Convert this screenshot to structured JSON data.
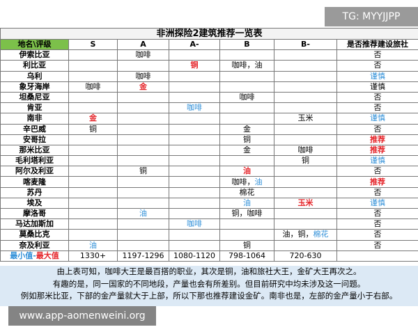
{
  "watermark_top": "TG: MYYJJPP",
  "colors": {
    "red": "#e5262b",
    "blue": "#2f8fd8"
  },
  "table": {
    "title": "非洲探险2建筑推荐一览表",
    "header": [
      "地名\\评级",
      "S",
      "A",
      "A-",
      "B",
      "B-",
      "是否推荐建设旅社"
    ],
    "rows": [
      {
        "name": "伊索比亚",
        "cells": [
          null,
          [
            {
              "text": "咖啡"
            }
          ],
          null,
          null,
          null,
          [
            {
              "text": "否"
            }
          ]
        ]
      },
      {
        "name": "利比亚",
        "cells": [
          null,
          null,
          [
            {
              "text": "铜",
              "color": "red"
            }
          ],
          [
            {
              "text": "咖啡，油"
            }
          ],
          null,
          [
            {
              "text": "否"
            }
          ]
        ]
      },
      {
        "name": "乌利",
        "cells": [
          null,
          [
            {
              "text": "咖啡"
            }
          ],
          null,
          null,
          null,
          [
            {
              "text": "谨慎",
              "color": "blue"
            }
          ]
        ]
      },
      {
        "name": "象牙海岸",
        "cells": [
          [
            {
              "text": "咖啡"
            }
          ],
          [
            {
              "text": "金",
              "color": "red"
            }
          ],
          null,
          null,
          null,
          [
            {
              "text": "谨慎"
            }
          ]
        ]
      },
      {
        "name": "坦桑尼亚",
        "cells": [
          null,
          null,
          null,
          [
            {
              "text": "咖啡"
            }
          ],
          null,
          [
            {
              "text": "否"
            }
          ]
        ]
      },
      {
        "name": "肯亚",
        "cells": [
          null,
          null,
          [
            {
              "text": "咖啡",
              "color": "blue"
            }
          ],
          null,
          null,
          [
            {
              "text": "否"
            }
          ]
        ]
      },
      {
        "name": "南非",
        "cells": [
          [
            {
              "text": "金",
              "color": "red"
            }
          ],
          null,
          null,
          null,
          [
            {
              "text": "玉米"
            }
          ],
          [
            {
              "text": "谨慎",
              "color": "blue"
            }
          ]
        ]
      },
      {
        "name": "辛巴威",
        "cells": [
          [
            {
              "text": "铜"
            }
          ],
          null,
          null,
          [
            {
              "text": "金"
            }
          ],
          null,
          [
            {
              "text": "否"
            }
          ]
        ]
      },
      {
        "name": "安哥拉",
        "cells": [
          null,
          null,
          null,
          [
            {
              "text": "铜"
            }
          ],
          null,
          [
            {
              "text": "推荐",
              "color": "red"
            }
          ]
        ]
      },
      {
        "name": "那米比亚",
        "cells": [
          null,
          null,
          null,
          [
            {
              "text": "金"
            }
          ],
          [
            {
              "text": "咖啡"
            }
          ],
          [
            {
              "text": "推荐",
              "color": "red"
            }
          ]
        ]
      },
      {
        "name": "毛利塔利亚",
        "cells": [
          null,
          null,
          null,
          null,
          [
            {
              "text": "铜"
            }
          ],
          [
            {
              "text": "谨慎",
              "color": "blue"
            }
          ]
        ]
      },
      {
        "name": "阿尔及利亚",
        "cells": [
          null,
          [
            {
              "text": "铜"
            }
          ],
          null,
          [
            {
              "text": "油",
              "color": "red"
            }
          ],
          null,
          [
            {
              "text": "否"
            }
          ]
        ]
      },
      {
        "name": "喀麦隆",
        "cells": [
          null,
          null,
          null,
          [
            {
              "text": "咖啡，"
            },
            {
              "text": "油",
              "color": "blue"
            }
          ],
          null,
          [
            {
              "text": "推荐",
              "color": "red"
            }
          ]
        ]
      },
      {
        "name": "苏丹",
        "cells": [
          null,
          null,
          null,
          [
            {
              "text": "棉花"
            }
          ],
          null,
          [
            {
              "text": "否"
            }
          ]
        ]
      },
      {
        "name": "埃及",
        "cells": [
          null,
          null,
          null,
          [
            {
              "text": "油",
              "color": "blue"
            }
          ],
          [
            {
              "text": "玉米",
              "color": "red"
            }
          ],
          [
            {
              "text": "谨慎",
              "color": "blue"
            }
          ]
        ]
      },
      {
        "name": "摩洛哥",
        "cells": [
          null,
          [
            {
              "text": "油",
              "color": "blue"
            }
          ],
          null,
          [
            {
              "text": "铜，咖啡"
            }
          ],
          null,
          [
            {
              "text": "否"
            }
          ]
        ]
      },
      {
        "name": "马达加斯加",
        "cells": [
          null,
          null,
          [
            {
              "text": "咖啡",
              "color": "blue"
            }
          ],
          null,
          null,
          [
            {
              "text": "否"
            }
          ]
        ]
      },
      {
        "name": "莫桑比克",
        "cells": [
          null,
          null,
          null,
          null,
          [
            {
              "text": "油，铜，"
            },
            {
              "text": "棉花",
              "color": "blue"
            }
          ],
          [
            {
              "text": "否"
            }
          ]
        ]
      },
      {
        "name": "奈及利亚",
        "cells": [
          [
            {
              "text": "油",
              "color": "blue"
            }
          ],
          null,
          null,
          [
            {
              "text": "铜"
            }
          ],
          null,
          [
            {
              "text": "否"
            }
          ]
        ]
      },
      {
        "name": [
          {
            "text": "最小值-",
            "color": "blue"
          },
          {
            "text": "最大值",
            "color": "red"
          }
        ],
        "cells": [
          [
            {
              "text": "1330+"
            }
          ],
          [
            {
              "text": "1197-1296"
            }
          ],
          [
            {
              "text": "1080-1120"
            }
          ],
          [
            {
              "text": "798-1064"
            }
          ],
          [
            {
              "text": "720-630"
            }
          ],
          null
        ]
      }
    ]
  },
  "footer": [
    "由上表可知，咖啡大王是最百搭的职业，其次是铜，油和旅社大王，金矿大王再次之。",
    "有趣的是，同一国家的不同地段，产量也会有所差别。但目前研究中均未涉及这一问题。",
    "例如那米比亚，下部的金产量就大于上部，所以下那也推荐建设金矿。南非也是，左部的金产量小于右部。"
  ],
  "watermark_bottom": "www.app-aomenweini.org"
}
